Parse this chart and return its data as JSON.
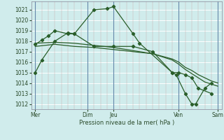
{
  "background_color": "#d0ecec",
  "grid_color": "#b8d8d8",
  "line_color": "#2a5e2a",
  "xlabel": "Pression niveau de la mer( hPa )",
  "ylim": [
    1011.5,
    1021.8
  ],
  "yticks": [
    1012,
    1013,
    1014,
    1015,
    1016,
    1017,
    1018,
    1019,
    1020,
    1021
  ],
  "xtick_labels": [
    "Mer",
    "Dim",
    "Jeu",
    "Ven",
    "Sam"
  ],
  "xtick_positions": [
    0,
    4,
    6,
    11,
    14
  ],
  "day_vlines": [
    0,
    4,
    6,
    11,
    14
  ],
  "s1_x": [
    0,
    0.5,
    1.5,
    2.5,
    3.0,
    4.5,
    5.5,
    6.0,
    7.5,
    8.0,
    10.5,
    10.8,
    11.5,
    12.0,
    12.3,
    13.0,
    13.5
  ],
  "s1_y": [
    1015.0,
    1016.2,
    1018.0,
    1018.8,
    1018.7,
    1021.0,
    1021.1,
    1021.3,
    1018.7,
    1017.8,
    1015.0,
    1014.8,
    1013.0,
    1012.0,
    1012.0,
    1013.5,
    1014.0
  ],
  "s2_x": [
    0,
    0.5,
    1.0,
    1.5,
    2.5,
    3.0,
    4.5,
    6.0,
    7.5,
    9.0,
    10.5,
    11.0,
    11.5,
    12.0,
    12.5,
    13.5
  ],
  "s2_y": [
    1017.7,
    1018.1,
    1018.5,
    1019.0,
    1018.7,
    1018.7,
    1017.5,
    1017.5,
    1017.5,
    1017.0,
    1015.0,
    1015.0,
    1014.8,
    1014.5,
    1013.5,
    1013.0
  ],
  "s3_x": [
    0,
    1.5,
    3.0,
    4.5,
    6.0,
    7.5,
    9.0,
    10.5,
    11.0,
    11.5,
    12.0,
    12.5,
    13.0,
    13.5,
    14.0
  ],
  "s3_y": [
    1017.5,
    1017.7,
    1017.5,
    1017.4,
    1017.2,
    1017.0,
    1016.8,
    1016.3,
    1016.0,
    1015.5,
    1015.2,
    1014.8,
    1014.5,
    1014.2,
    1014.0
  ],
  "s4_x": [
    0,
    1.5,
    3.0,
    4.5,
    6.0,
    7.5,
    9.0,
    10.5,
    11.0,
    11.5,
    12.0,
    12.5,
    13.0,
    14.0
  ],
  "s4_y": [
    1017.8,
    1017.9,
    1017.8,
    1017.6,
    1017.4,
    1017.1,
    1016.8,
    1016.2,
    1015.8,
    1015.3,
    1014.9,
    1014.5,
    1014.1,
    1013.7
  ]
}
